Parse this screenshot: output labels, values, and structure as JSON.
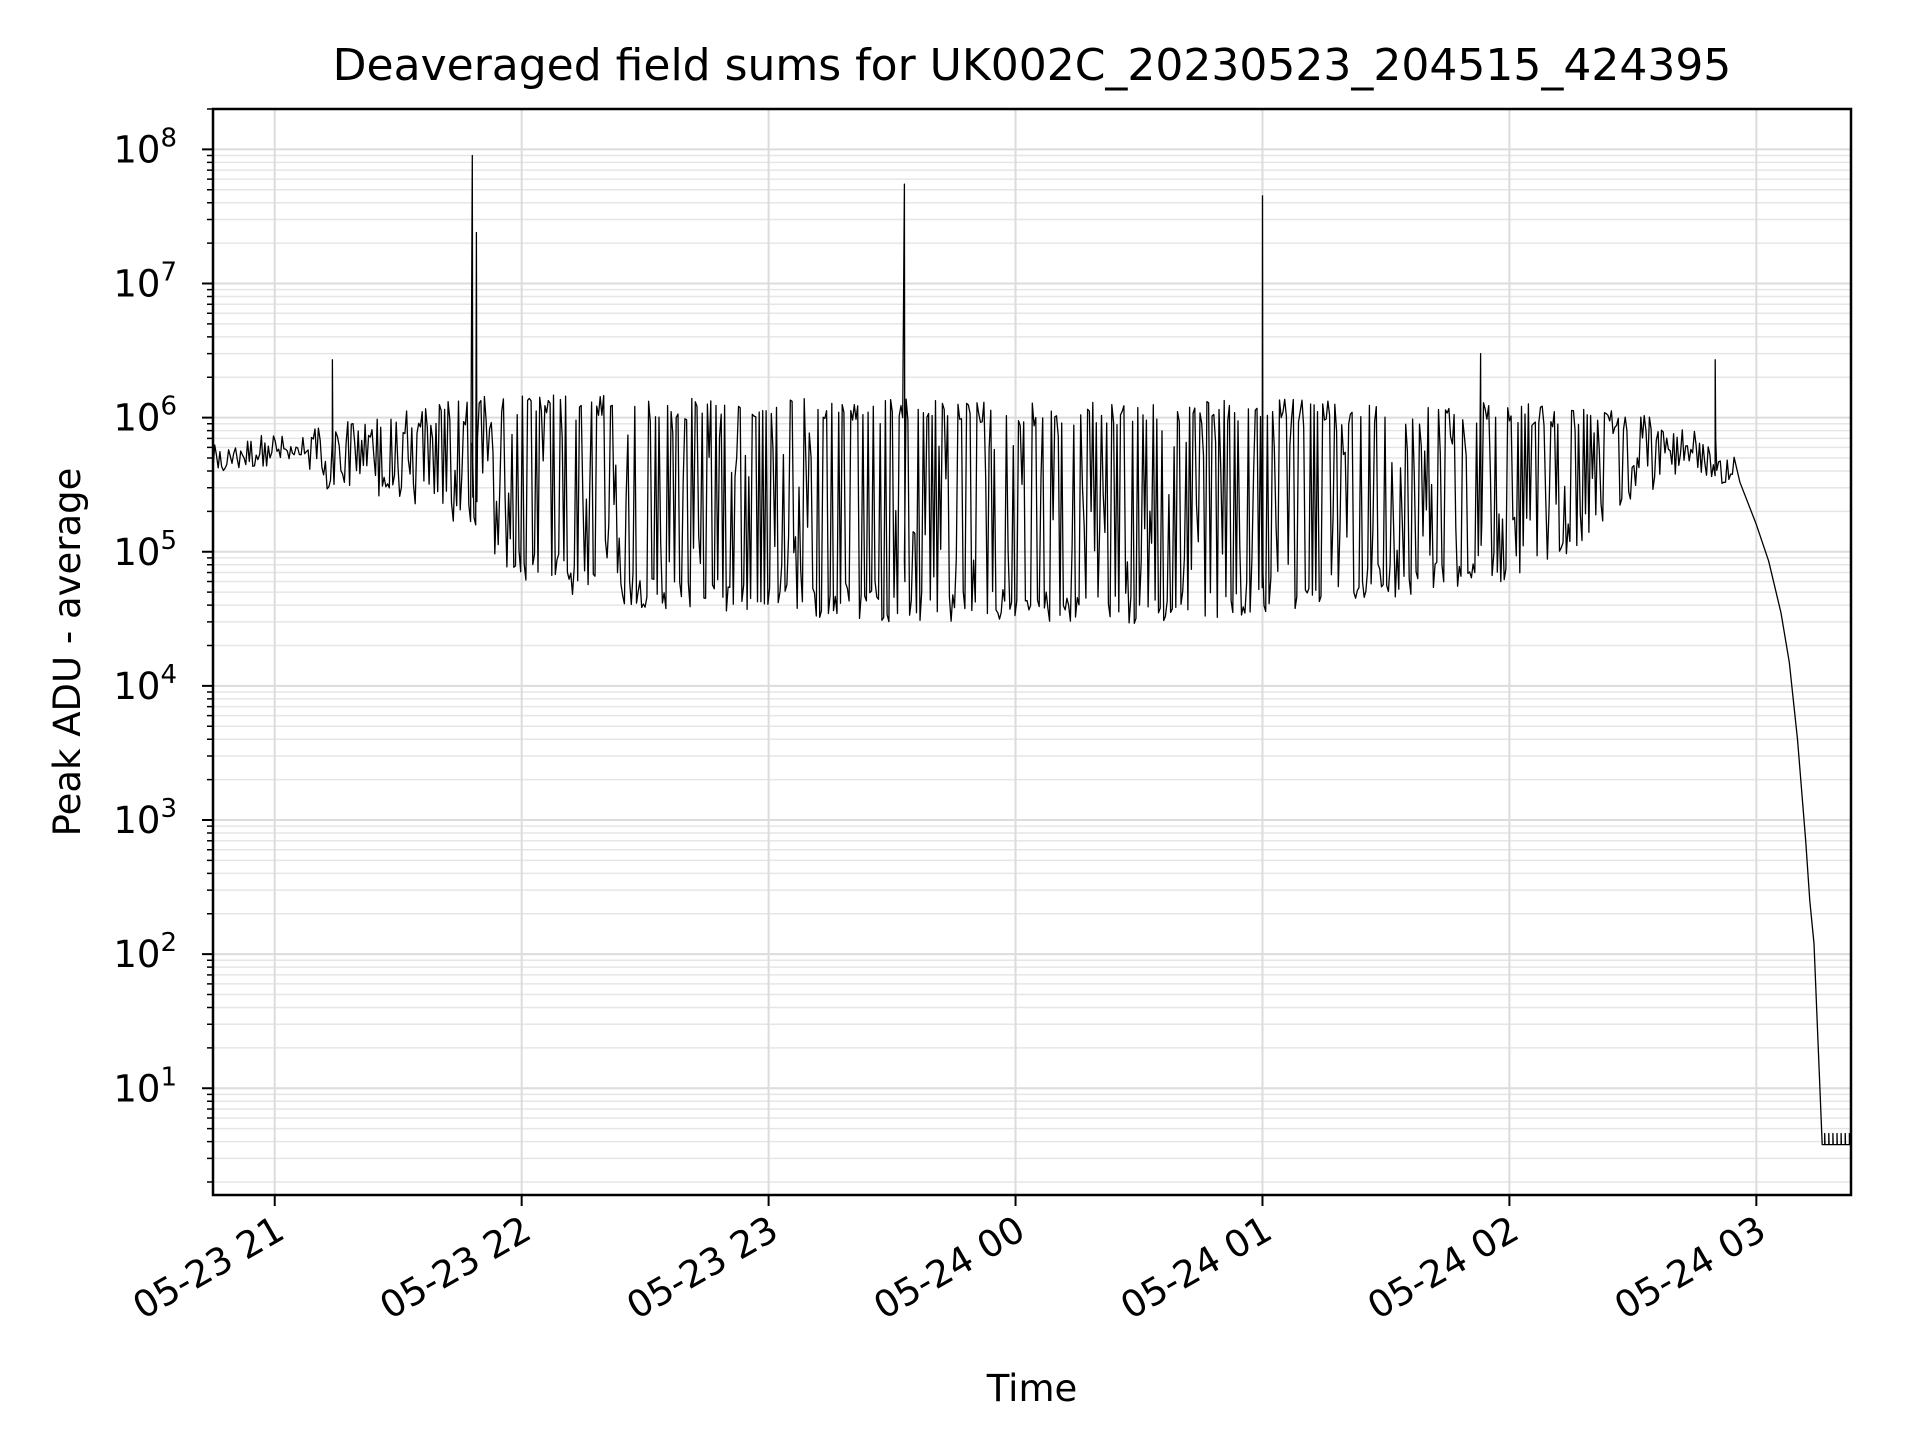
{
  "chart_data": {
    "type": "line",
    "title": "Deaveraged field sums for UK002C_20230523_204515_424395",
    "xlabel": "Time",
    "ylabel": "Peak ADU - average",
    "y_scale": "log",
    "ylim": [
      1.6,
      200000000
    ],
    "xlim": [
      "2023-05-23 20:45",
      "2023-05-24 03:23"
    ],
    "grid": "major and minor, light gray",
    "legend": "none",
    "x_ticks": [
      {
        "t": "2023-05-23 21:00",
        "label": "05-23 21"
      },
      {
        "t": "2023-05-23 22:00",
        "label": "05-23 22"
      },
      {
        "t": "2023-05-23 23:00",
        "label": "05-23 23"
      },
      {
        "t": "2023-05-24 00:00",
        "label": "05-24 00"
      },
      {
        "t": "2023-05-24 01:00",
        "label": "05-24 01"
      },
      {
        "t": "2023-05-24 02:00",
        "label": "05-24 02"
      },
      {
        "t": "2023-05-24 03:00",
        "label": "05-24 03"
      }
    ],
    "y_ticks": [
      {
        "v": 10,
        "base": "10",
        "exp": "1"
      },
      {
        "v": 100,
        "base": "10",
        "exp": "2"
      },
      {
        "v": 1000,
        "base": "10",
        "exp": "3"
      },
      {
        "v": 10000,
        "base": "10",
        "exp": "4"
      },
      {
        "v": 100000,
        "base": "10",
        "exp": "5"
      },
      {
        "v": 1000000,
        "base": "10",
        "exp": "6"
      },
      {
        "v": 10000000,
        "base": "10",
        "exp": "7"
      },
      {
        "v": 100000000,
        "base": "10",
        "exp": "8"
      }
    ],
    "series": [
      {
        "color": "#000000",
        "spikes": [
          {
            "t": "2023-05-23 21:14",
            "y": 2700000
          },
          {
            "t": "2023-05-23 21:48",
            "y": 90000000
          },
          {
            "t": "2023-05-23 21:49",
            "y": 24000000
          },
          {
            "t": "2023-05-23 23:33",
            "y": 55000000
          },
          {
            "t": "2023-05-24 01:00",
            "y": 45000000
          },
          {
            "t": "2023-05-24 01:53",
            "y": 3000000
          },
          {
            "t": "2023-05-24 02:50",
            "y": 2700000
          }
        ],
        "envelope": [
          {
            "t": "2023-05-23 20:45",
            "high": 600000,
            "low": 350000
          },
          {
            "t": "2023-05-23 21:00",
            "high": 700000,
            "low": 450000
          },
          {
            "t": "2023-05-23 21:15",
            "high": 900000,
            "low": 250000
          },
          {
            "t": "2023-05-23 21:30",
            "high": 1100000,
            "low": 250000
          },
          {
            "t": "2023-05-23 21:45",
            "high": 1400000,
            "low": 150000
          },
          {
            "t": "2023-05-23 22:00",
            "high": 1500000,
            "low": 60000
          },
          {
            "t": "2023-05-23 22:15",
            "high": 1500000,
            "low": 45000
          },
          {
            "t": "2023-05-23 22:30",
            "high": 1400000,
            "low": 38000
          },
          {
            "t": "2023-05-23 23:00",
            "high": 1400000,
            "low": 33000
          },
          {
            "t": "2023-05-23 23:30",
            "high": 1400000,
            "low": 30000
          },
          {
            "t": "2023-05-24 00:00",
            "high": 1300000,
            "low": 30000
          },
          {
            "t": "2023-05-24 00:30",
            "high": 1300000,
            "low": 28000
          },
          {
            "t": "2023-05-24 01:00",
            "high": 1400000,
            "low": 35000
          },
          {
            "t": "2023-05-24 01:30",
            "high": 1300000,
            "low": 45000
          },
          {
            "t": "2023-05-24 02:00",
            "high": 1300000,
            "low": 60000
          },
          {
            "t": "2023-05-24 02:15",
            "high": 1200000,
            "low": 100000
          },
          {
            "t": "2023-05-24 02:30",
            "high": 1100000,
            "low": 250000
          },
          {
            "t": "2023-05-24 02:45",
            "high": 800000,
            "low": 400000
          },
          {
            "t": "2023-05-24 02:55",
            "high": 380000,
            "low": 300000
          }
        ],
        "decay": [
          {
            "t": "2023-05-24 02:56",
            "y": 330000
          },
          {
            "t": "2023-05-24 03:00",
            "y": 160000
          },
          {
            "t": "2023-05-24 03:03",
            "y": 85000
          },
          {
            "t": "2023-05-24 03:06",
            "y": 35000
          },
          {
            "t": "2023-05-24 03:08",
            "y": 15000
          },
          {
            "t": "2023-05-24 03:10",
            "y": 4000
          },
          {
            "t": "2023-05-24 03:12",
            "y": 700
          },
          {
            "t": "2023-05-24 03:13",
            "y": 250
          },
          {
            "t": "2023-05-24 03:14",
            "y": 120
          },
          {
            "t": "2023-05-24 03:16",
            "y": 3.8
          },
          {
            "t": "2023-05-24 03:23",
            "y": 3.8
          }
        ]
      }
    ]
  }
}
